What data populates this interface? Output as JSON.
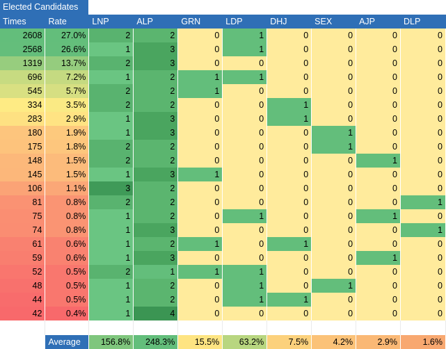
{
  "title": "Elected Candidates",
  "headers": [
    "Times",
    "Rate",
    "LNP",
    "ALP",
    "GRN",
    "LDP",
    "DHJ",
    "SEX",
    "AJP",
    "DLP"
  ],
  "rows": [
    [
      "2608",
      "27.0%",
      "2",
      "2",
      "0",
      "1",
      "0",
      "0",
      "0",
      "0"
    ],
    [
      "2568",
      "26.6%",
      "1",
      "3",
      "0",
      "1",
      "0",
      "0",
      "0",
      "0"
    ],
    [
      "1319",
      "13.7%",
      "2",
      "3",
      "0",
      "0",
      "0",
      "0",
      "0",
      "0"
    ],
    [
      "696",
      "7.2%",
      "1",
      "2",
      "1",
      "1",
      "0",
      "0",
      "0",
      "0"
    ],
    [
      "545",
      "5.7%",
      "2",
      "2",
      "1",
      "0",
      "0",
      "0",
      "0",
      "0"
    ],
    [
      "334",
      "3.5%",
      "2",
      "2",
      "0",
      "0",
      "1",
      "0",
      "0",
      "0"
    ],
    [
      "283",
      "2.9%",
      "1",
      "3",
      "0",
      "0",
      "1",
      "0",
      "0",
      "0"
    ],
    [
      "180",
      "1.9%",
      "1",
      "3",
      "0",
      "0",
      "0",
      "1",
      "0",
      "0"
    ],
    [
      "175",
      "1.8%",
      "2",
      "2",
      "0",
      "0",
      "0",
      "1",
      "0",
      "0"
    ],
    [
      "148",
      "1.5%",
      "2",
      "2",
      "0",
      "0",
      "0",
      "0",
      "1",
      "0"
    ],
    [
      "145",
      "1.5%",
      "1",
      "3",
      "1",
      "0",
      "0",
      "0",
      "0",
      "0"
    ],
    [
      "106",
      "1.1%",
      "3",
      "2",
      "0",
      "0",
      "0",
      "0",
      "0",
      "0"
    ],
    [
      "81",
      "0.8%",
      "2",
      "2",
      "0",
      "0",
      "0",
      "0",
      "0",
      "1"
    ],
    [
      "75",
      "0.8%",
      "1",
      "2",
      "0",
      "1",
      "0",
      "0",
      "1",
      "0"
    ],
    [
      "74",
      "0.8%",
      "1",
      "3",
      "0",
      "0",
      "0",
      "0",
      "0",
      "1"
    ],
    [
      "61",
      "0.6%",
      "1",
      "2",
      "1",
      "0",
      "1",
      "0",
      "0",
      "0"
    ],
    [
      "59",
      "0.6%",
      "1",
      "3",
      "0",
      "0",
      "0",
      "0",
      "1",
      "0"
    ],
    [
      "52",
      "0.5%",
      "2",
      "1",
      "1",
      "1",
      "0",
      "0",
      "0",
      "0"
    ],
    [
      "48",
      "0.5%",
      "1",
      "2",
      "0",
      "1",
      "0",
      "1",
      "0",
      "0"
    ],
    [
      "44",
      "0.5%",
      "1",
      "2",
      "0",
      "1",
      "1",
      "0",
      "0",
      "0"
    ],
    [
      "42",
      "0.4%",
      "1",
      "4",
      "0",
      "0",
      "0",
      "0",
      "0",
      "0"
    ]
  ],
  "average": {
    "label": "Average",
    "values": [
      "156.8%",
      "248.3%",
      "15.5%",
      "63.2%",
      "7.5%",
      "4.2%",
      "2.9%",
      "1.6%"
    ]
  },
  "colors": {
    "header_bg": "#2f6fb6",
    "header_text": "#ffffff",
    "zero_yellow": "#ffeb9c",
    "one_green": "#63be7b",
    "avg_high_green": "#63be7b",
    "avg_low_orange": "#f8a870",
    "rate_high": "#63be7b",
    "rate_low": "#f8696b"
  }
}
